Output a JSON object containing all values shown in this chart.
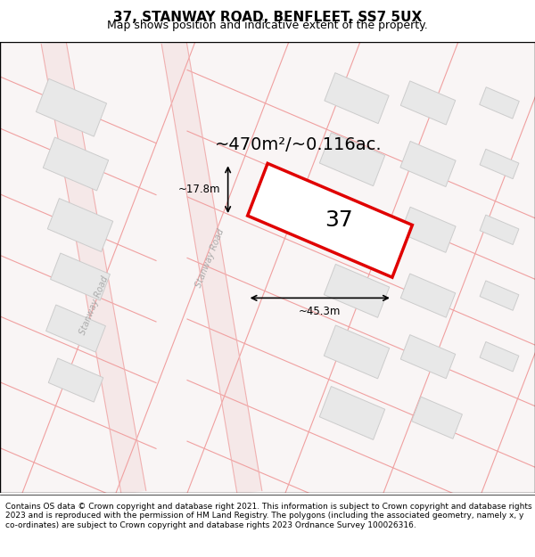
{
  "title": "37, STANWAY ROAD, BENFLEET, SS7 5UX",
  "subtitle": "Map shows position and indicative extent of the property.",
  "area_label": "~470m²/~0.116ac.",
  "width_label": "~45.3m",
  "height_label": "~17.8m",
  "plot_number": "37",
  "footer": "Contains OS data © Crown copyright and database right 2021. This information is subject to Crown copyright and database rights 2023 and is reproduced with the permission of HM Land Registry. The polygons (including the associated geometry, namely x, y co-ordinates) are subject to Crown copyright and database rights 2023 Ordnance Survey 100026316.",
  "background_color": "#ffffff",
  "map_bg": "#f9f5f5",
  "road_color": "#f0d0d0",
  "building_fill": "#e0e0e0",
  "building_edge": "#c0c0c0",
  "plot_fill": "#ffffff",
  "plot_edge": "#e00000",
  "road_label_color": "#aaaaaa",
  "title_fontsize": 11,
  "subtitle_fontsize": 9,
  "area_label_fontsize": 14,
  "plot_number_fontsize": 18,
  "footer_fontsize": 6.5
}
